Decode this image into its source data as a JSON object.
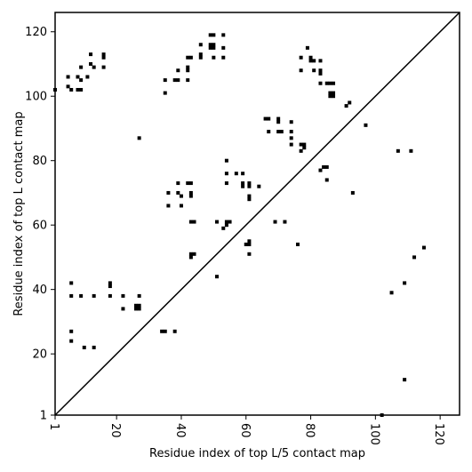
{
  "chart_data": {
    "type": "scatter",
    "xlabel": "Residue index of top L/5 contact map",
    "ylabel": "Residue index of top L contact map",
    "xlim": [
      1,
      126
    ],
    "ylim": [
      1,
      126
    ],
    "xticks": [
      1,
      20,
      40,
      60,
      80,
      100,
      120
    ],
    "yticks": [
      1,
      20,
      40,
      60,
      80,
      100,
      120
    ],
    "xtick_labels": [
      "1",
      "20",
      "40",
      "60",
      "80",
      "100",
      "120"
    ],
    "ytick_labels": [
      "1",
      "20",
      "40",
      "60",
      "80",
      "100",
      "120"
    ],
    "x_tick_label_rotation": "vertical",
    "grid": false,
    "diagonal_line": true,
    "marker": "square",
    "color": "#000000",
    "series": [
      {
        "points": [
          [
            1,
            102
          ],
          [
            5,
            106
          ],
          [
            5,
            103
          ],
          [
            6,
            102
          ],
          [
            8,
            106
          ],
          [
            8,
            102
          ],
          [
            9,
            109
          ],
          [
            9,
            105
          ],
          [
            9,
            102
          ],
          [
            11,
            106
          ],
          [
            12,
            113
          ],
          [
            12,
            110
          ],
          [
            13,
            109
          ],
          [
            16,
            113
          ],
          [
            16,
            112
          ],
          [
            16,
            109
          ],
          [
            35,
            105
          ],
          [
            35,
            101
          ],
          [
            38,
            105
          ],
          [
            39,
            108
          ],
          [
            39,
            105
          ],
          [
            42,
            112
          ],
          [
            42,
            109
          ],
          [
            42,
            108
          ],
          [
            42,
            105
          ],
          [
            43,
            112
          ],
          [
            46,
            116
          ],
          [
            46,
            113
          ],
          [
            46,
            112
          ],
          [
            49,
            119
          ],
          [
            49,
            116
          ],
          [
            49,
            115
          ],
          [
            50,
            119
          ],
          [
            50,
            116
          ],
          [
            50,
            115
          ],
          [
            50,
            112
          ],
          [
            53,
            119
          ],
          [
            53,
            115
          ],
          [
            53,
            112
          ],
          [
            79,
            115
          ],
          [
            80,
            112
          ],
          [
            80,
            111
          ],
          [
            81,
            111
          ],
          [
            81,
            108
          ],
          [
            83,
            111
          ],
          [
            83,
            108
          ],
          [
            83,
            107
          ],
          [
            83,
            104
          ],
          [
            85,
            104
          ],
          [
            86,
            104
          ],
          [
            86,
            101
          ],
          [
            86,
            100
          ],
          [
            87,
            104
          ],
          [
            87,
            101
          ],
          [
            87,
            100
          ],
          [
            91,
            97
          ],
          [
            92,
            98
          ],
          [
            77,
            112
          ],
          [
            77,
            108
          ],
          [
            27,
            87
          ],
          [
            66,
            93
          ],
          [
            67,
            93
          ],
          [
            67,
            89
          ],
          [
            70,
            93
          ],
          [
            70,
            92
          ],
          [
            70,
            89
          ],
          [
            71,
            89
          ],
          [
            74,
            92
          ],
          [
            74,
            89
          ],
          [
            74,
            87
          ],
          [
            74,
            85
          ],
          [
            77,
            85
          ],
          [
            77,
            83
          ],
          [
            78,
            85
          ],
          [
            78,
            84
          ],
          [
            97,
            91
          ],
          [
            36,
            70
          ],
          [
            36,
            66
          ],
          [
            39,
            73
          ],
          [
            39,
            70
          ],
          [
            40,
            69
          ],
          [
            40,
            66
          ],
          [
            42,
            73
          ],
          [
            43,
            73
          ],
          [
            43,
            70
          ],
          [
            43,
            69
          ],
          [
            54,
            80
          ],
          [
            54,
            76
          ],
          [
            54,
            73
          ],
          [
            57,
            76
          ],
          [
            59,
            76
          ],
          [
            59,
            73
          ],
          [
            59,
            72
          ],
          [
            61,
            73
          ],
          [
            61,
            72
          ],
          [
            61,
            69
          ],
          [
            61,
            68
          ],
          [
            64,
            72
          ],
          [
            83,
            77
          ],
          [
            84,
            78
          ],
          [
            85,
            78
          ],
          [
            85,
            74
          ],
          [
            93,
            70
          ],
          [
            107,
            83
          ],
          [
            111,
            83
          ],
          [
            43,
            61
          ],
          [
            44,
            61
          ],
          [
            51,
            61
          ],
          [
            53,
            59
          ],
          [
            54,
            60
          ],
          [
            54,
            61
          ],
          [
            55,
            61
          ],
          [
            60,
            54
          ],
          [
            61,
            55
          ],
          [
            61,
            54
          ],
          [
            61,
            51
          ],
          [
            69,
            61
          ],
          [
            72,
            61
          ],
          [
            76,
            54
          ],
          [
            43,
            51
          ],
          [
            43,
            50
          ],
          [
            44,
            51
          ],
          [
            51,
            44
          ],
          [
            105,
            39
          ],
          [
            109,
            42
          ],
          [
            112,
            50
          ],
          [
            115,
            53
          ],
          [
            6,
            42
          ],
          [
            6,
            38
          ],
          [
            9,
            38
          ],
          [
            13,
            38
          ],
          [
            18,
            42
          ],
          [
            18,
            41
          ],
          [
            18,
            38
          ],
          [
            22,
            38
          ],
          [
            22,
            34
          ],
          [
            26,
            34
          ],
          [
            26,
            35
          ],
          [
            27,
            34
          ],
          [
            27,
            35
          ],
          [
            27,
            38
          ],
          [
            6,
            27
          ],
          [
            6,
            24
          ],
          [
            10,
            22
          ],
          [
            13,
            22
          ],
          [
            34,
            27
          ],
          [
            35,
            27
          ],
          [
            38,
            27
          ],
          [
            109,
            12
          ],
          [
            102,
            1
          ]
        ]
      }
    ]
  }
}
